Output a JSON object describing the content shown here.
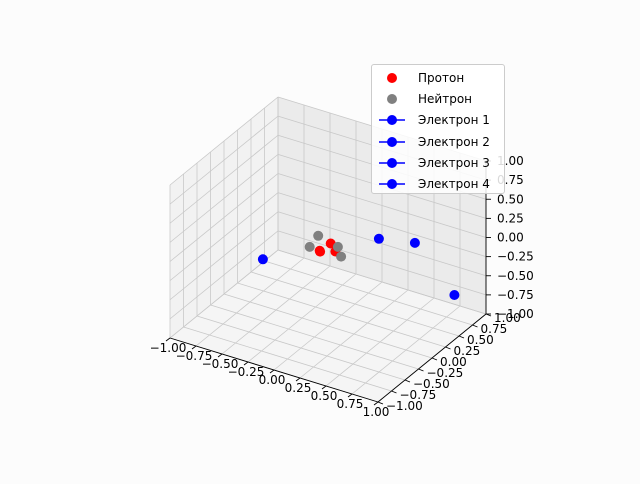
{
  "chart_data": {
    "type": "scatter",
    "projection": "3d",
    "title": "",
    "xlabel": "",
    "ylabel": "",
    "zlabel": "",
    "xlim": [
      -1,
      1
    ],
    "ylim": [
      -1,
      1
    ],
    "zlim": [
      -1,
      1
    ],
    "xticks": [
      "−1.00",
      "−0.75",
      "−0.50",
      "−0.25",
      "0.00",
      "0.25",
      "0.50",
      "0.75",
      "1.00"
    ],
    "yticks": [
      "−1.00",
      "−0.75",
      "−0.50",
      "−0.25",
      "0.00",
      "0.25",
      "0.50",
      "0.75",
      "1.00"
    ],
    "zticks": [
      "−1.00",
      "−0.75",
      "−0.50",
      "−0.25",
      "0.00",
      "0.25",
      "0.50",
      "0.75",
      "1.00"
    ],
    "grid": true,
    "legend_position": "top-right",
    "series": [
      {
        "name": "Протон",
        "color": "#ff0000",
        "marker": "circle",
        "points": [
          {
            "x": 0.0,
            "y": 0.05,
            "z": 0.05
          },
          {
            "x": -0.05,
            "y": -0.05,
            "z": -0.02
          },
          {
            "x": 0.03,
            "y": 0.08,
            "z": -0.06
          },
          {
            "x": -0.08,
            "y": 0.0,
            "z": -0.05
          }
        ]
      },
      {
        "name": "Нейтрон",
        "color": "#808080",
        "marker": "circle",
        "points": [
          {
            "x": -0.12,
            "y": 0.05,
            "z": 0.1
          },
          {
            "x": 0.1,
            "y": 0.05,
            "z": -0.08
          },
          {
            "x": 0.08,
            "y": 0.03,
            "z": 0.05
          },
          {
            "x": -0.15,
            "y": -0.05,
            "z": 0.0
          }
        ]
      },
      {
        "name": "Электрон 1",
        "color": "#0000ff",
        "marker": "circle-line",
        "points": [
          {
            "x": 0.55,
            "y": 0.55,
            "z": 0.0
          }
        ]
      },
      {
        "name": "Электрон 2",
        "color": "#0000ff",
        "marker": "circle-line",
        "points": [
          {
            "x": 0.1,
            "y": 0.75,
            "z": -0.25
          }
        ]
      },
      {
        "name": "Электрон 3",
        "color": "#0000ff",
        "marker": "circle-line",
        "points": [
          {
            "x": -0.6,
            "y": -0.05,
            "z": -0.35
          }
        ]
      },
      {
        "name": "Электрон 4",
        "color": "#0000ff",
        "marker": "circle-line",
        "points": [
          {
            "x": 0.8,
            "y": 0.8,
            "z": -0.72
          }
        ]
      }
    ]
  }
}
